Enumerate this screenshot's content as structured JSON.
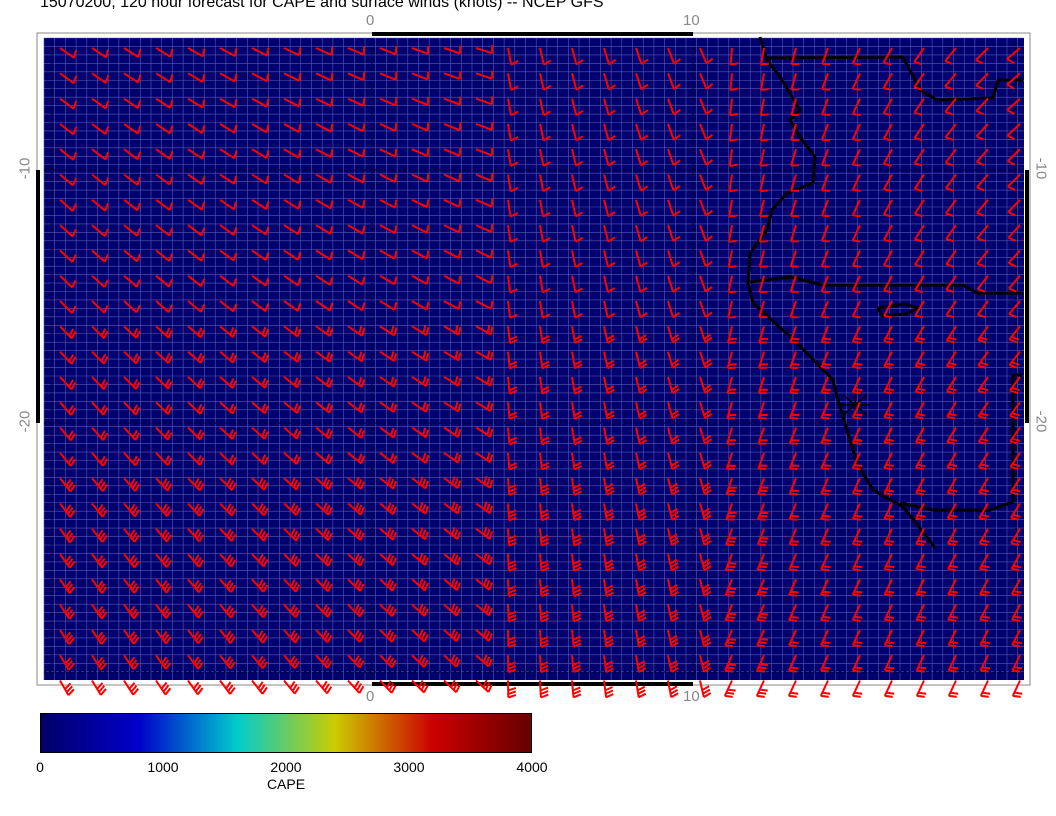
{
  "title": "15070200, 120 hour forecast for CAPE and surface winds (knots) -- NCEP GFS",
  "axes": {
    "top_ticks": [
      "0",
      "10"
    ],
    "bottom_ticks": [
      "0",
      "10"
    ],
    "left_ticks": [
      "-10",
      "-20"
    ],
    "right_ticks": [
      "-10",
      "-20"
    ]
  },
  "colors": {
    "background_field": "#00006e",
    "wind_barbs": "#ff0000",
    "coastline": "#000000",
    "grid": "#5a5ab4"
  },
  "field": {
    "name": "CAPE",
    "value_everywhere": 0
  },
  "colorbar": {
    "label": "CAPE",
    "tick_labels": [
      "0",
      "1000",
      "2000",
      "3000",
      "4000"
    ],
    "range": [
      0,
      4000
    ],
    "stops": [
      "#000066",
      "#0000cc",
      "#00cccc",
      "#cccc00",
      "#cc0000",
      "#660000"
    ]
  },
  "wind_units": "knots"
}
